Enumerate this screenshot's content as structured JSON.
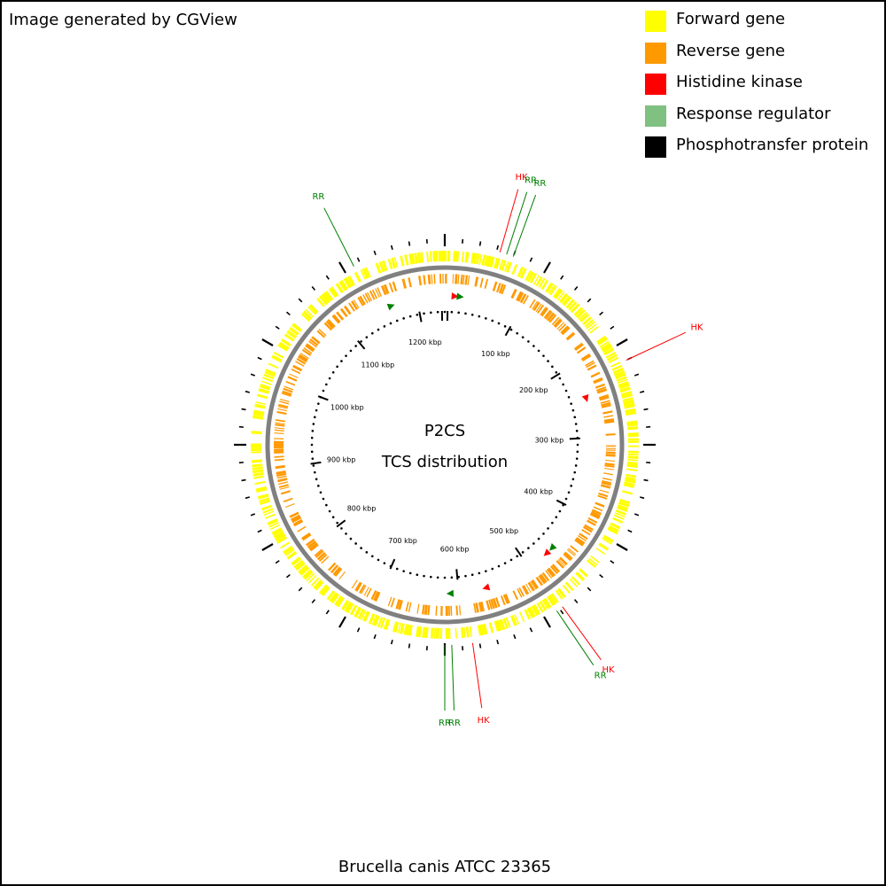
{
  "credit": "Image generated by CGView",
  "caption": "Brucella canis ATCC 23365",
  "center_text": {
    "line1": "P2CS",
    "line2": "TCS distribution"
  },
  "legend": [
    {
      "label": "Forward gene",
      "color": "#ffff00"
    },
    {
      "label": "Reverse gene",
      "color": "#ff9900"
    },
    {
      "label": "Histidine kinase",
      "color": "#ff0000"
    },
    {
      "label": "Response regulator",
      "color": "#80c080"
    },
    {
      "label": "Phosphotransfer protein",
      "color": "#000000"
    }
  ],
  "colors": {
    "forward": "#ffff00",
    "reverse": "#ff9900",
    "hk": "#ff0000",
    "hk_label": "#ff0000",
    "rr_label": "#008000",
    "rr_marker": "#008000",
    "backbone": "#808080",
    "black": "#000000"
  },
  "scale": {
    "labels": [
      "100 kbp",
      "200 kbp",
      "300 kbp",
      "400 kbp",
      "500 kbp",
      "600 kbp",
      "700 kbp",
      "800 kbp",
      "900 kbp",
      "1000 kbp",
      "1100 kbp",
      "1200 kbp"
    ]
  },
  "annotations": [
    {
      "label": "HK",
      "type": "HK",
      "angle": 16
    },
    {
      "label": "RR",
      "type": "RR",
      "angle": 18
    },
    {
      "label": "RR",
      "type": "RR",
      "angle": 20
    },
    {
      "label": "RR",
      "type": "RR",
      "angle": 333
    },
    {
      "label": "HK",
      "type": "HK",
      "angle": 65
    },
    {
      "label": "HK",
      "type": "HK",
      "angle": 144
    },
    {
      "label": "RR",
      "type": "RR",
      "angle": 146
    },
    {
      "label": "HK",
      "type": "HK",
      "angle": 172
    },
    {
      "label": "RR",
      "type": "RR",
      "angle": 178
    },
    {
      "label": "RR",
      "type": "RR",
      "angle": 180
    }
  ],
  "tcs_markers": [
    {
      "type": "HK",
      "angle": 4
    },
    {
      "type": "RR",
      "angle": 6
    },
    {
      "type": "RR",
      "angle": 339
    },
    {
      "type": "HK",
      "angle": 72
    },
    {
      "type": "RR",
      "angle": 134
    },
    {
      "type": "HK",
      "angle": 137
    },
    {
      "type": "HK",
      "angle": 164
    },
    {
      "type": "RR",
      "angle": 178
    }
  ]
}
